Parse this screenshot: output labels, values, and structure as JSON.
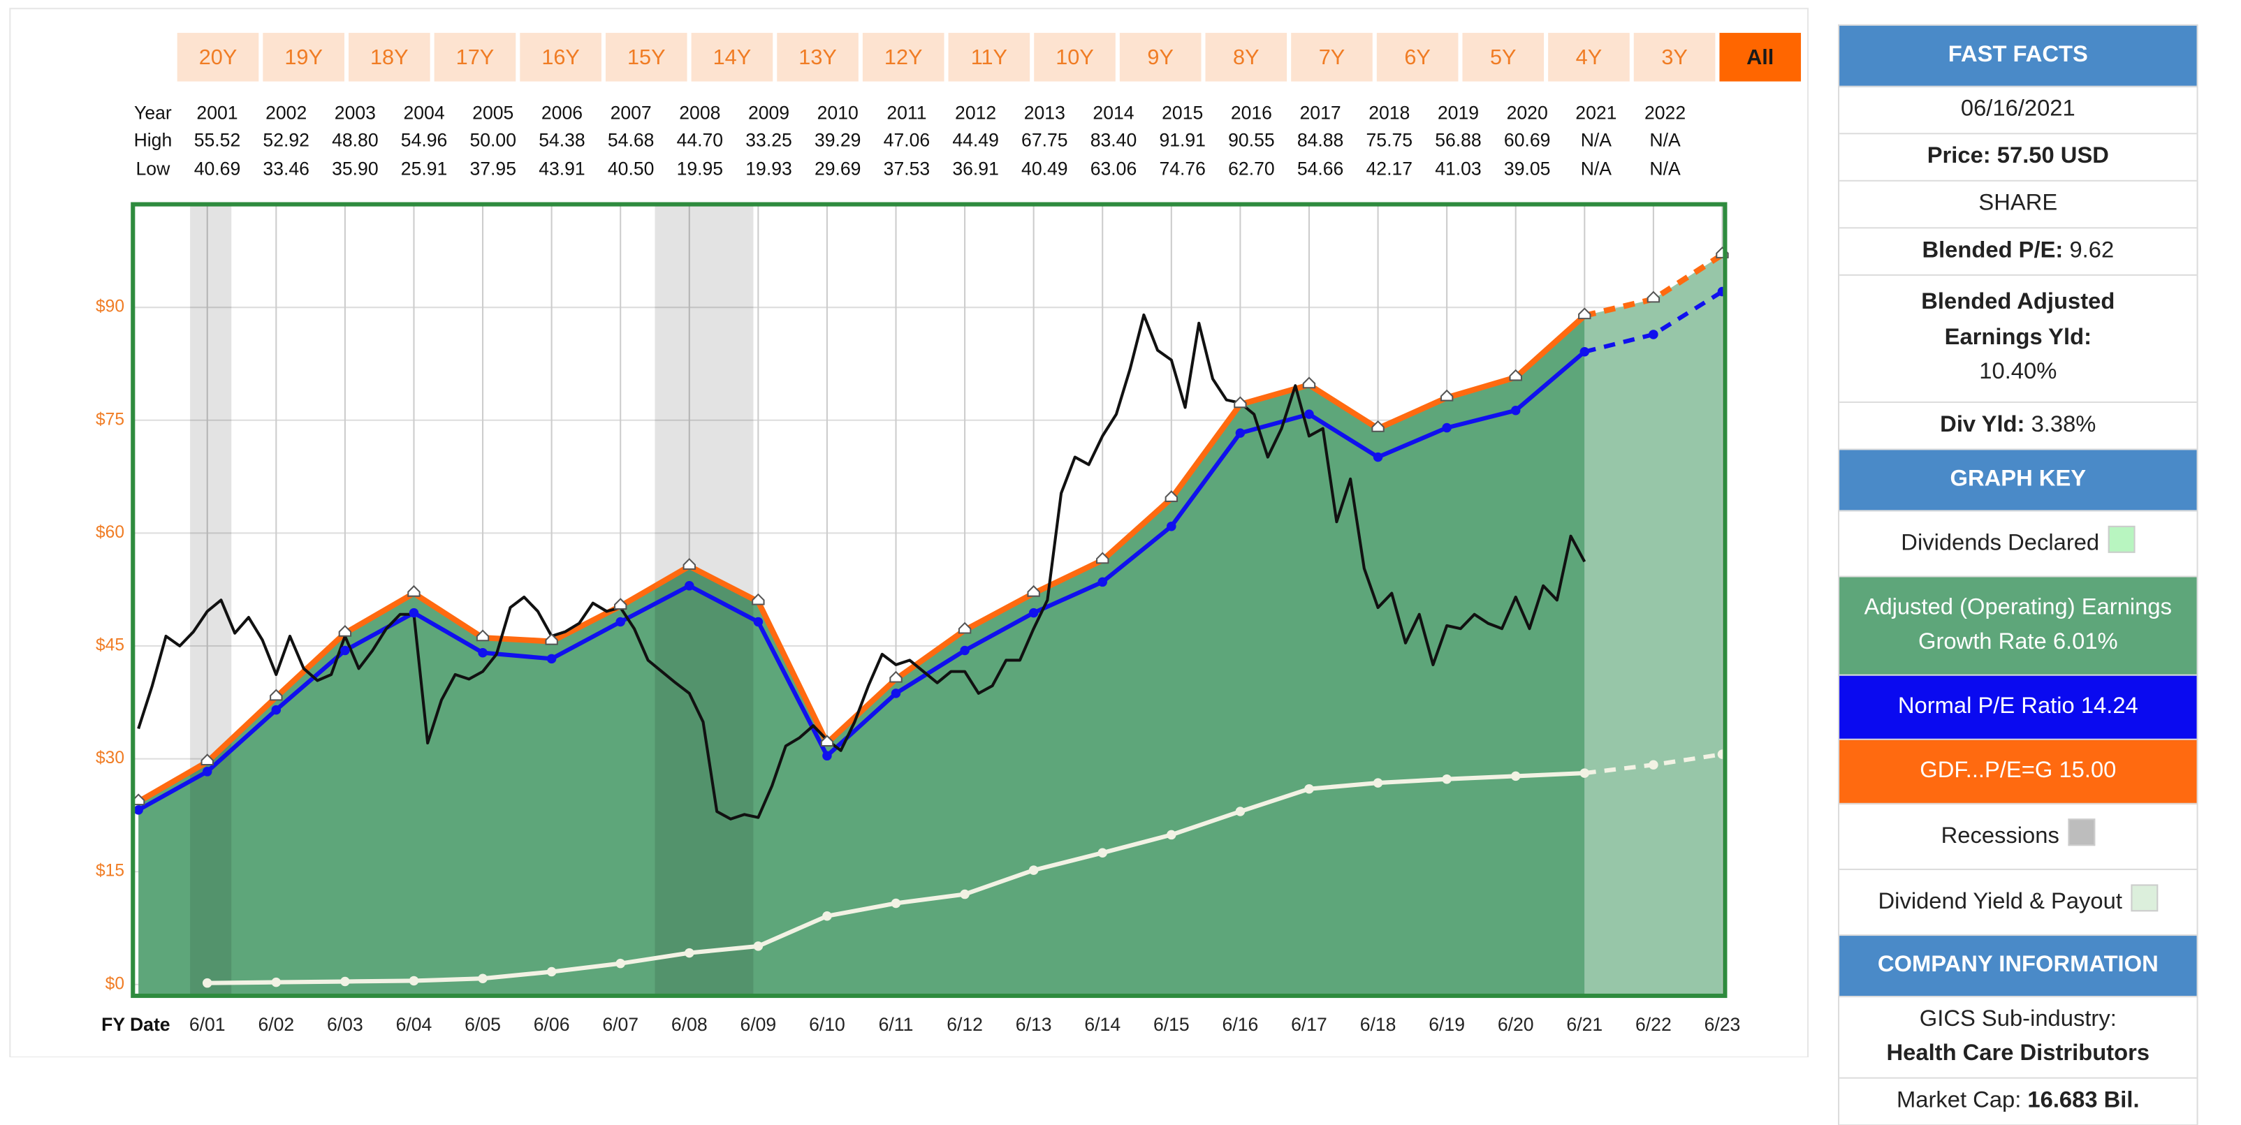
{
  "range_buttons": {
    "items": [
      "20Y",
      "19Y",
      "18Y",
      "17Y",
      "16Y",
      "15Y",
      "14Y",
      "13Y",
      "12Y",
      "11Y",
      "10Y",
      "9Y",
      "8Y",
      "7Y",
      "6Y",
      "5Y",
      "4Y",
      "3Y",
      "All"
    ],
    "selected": 18
  },
  "year_table": {
    "row_labels": [
      "Year",
      "High",
      "Low"
    ],
    "years": [
      "2001",
      "2002",
      "2003",
      "2004",
      "2005",
      "2006",
      "2007",
      "2008",
      "2009",
      "2010",
      "2011",
      "2012",
      "2013",
      "2014",
      "2015",
      "2016",
      "2017",
      "2018",
      "2019",
      "2020",
      "2021",
      "2022"
    ],
    "high": [
      "55.52",
      "52.92",
      "48.80",
      "54.96",
      "50.00",
      "54.38",
      "54.68",
      "44.70",
      "33.25",
      "39.29",
      "47.06",
      "44.49",
      "67.75",
      "83.40",
      "91.91",
      "90.55",
      "84.88",
      "75.75",
      "56.88",
      "60.69",
      "N/A",
      "N/A"
    ],
    "low": [
      "40.69",
      "33.46",
      "35.90",
      "25.91",
      "37.95",
      "43.91",
      "40.50",
      "19.95",
      "19.93",
      "29.69",
      "37.53",
      "36.91",
      "40.49",
      "63.06",
      "74.76",
      "62.70",
      "54.66",
      "42.17",
      "41.03",
      "39.05",
      "N/A",
      "N/A"
    ]
  },
  "chart_data": {
    "type": "line",
    "x_label": "FY Date",
    "xlim": [
      1999.92,
      2023.04
    ],
    "xticks": [
      {
        "value": 2001,
        "label": "6/01"
      },
      {
        "value": 2002,
        "label": "6/02"
      },
      {
        "value": 2003,
        "label": "6/03"
      },
      {
        "value": 2004,
        "label": "6/04"
      },
      {
        "value": 2005,
        "label": "6/05"
      },
      {
        "value": 2006,
        "label": "6/06"
      },
      {
        "value": 2007,
        "label": "6/07"
      },
      {
        "value": 2008,
        "label": "6/08"
      },
      {
        "value": 2009,
        "label": "6/09"
      },
      {
        "value": 2010,
        "label": "6/10"
      },
      {
        "value": 2011,
        "label": "6/11"
      },
      {
        "value": 2012,
        "label": "6/12"
      },
      {
        "value": 2013,
        "label": "6/13"
      },
      {
        "value": 2014,
        "label": "6/14"
      },
      {
        "value": 2015,
        "label": "6/15"
      },
      {
        "value": 2016,
        "label": "6/16"
      },
      {
        "value": 2017,
        "label": "6/17"
      },
      {
        "value": 2018,
        "label": "6/18"
      },
      {
        "value": 2019,
        "label": "6/19"
      },
      {
        "value": 2020,
        "label": "6/20"
      },
      {
        "value": 2021,
        "label": "6/21"
      },
      {
        "value": 2022,
        "label": "6/22"
      },
      {
        "value": 2023,
        "label": "6/23"
      }
    ],
    "ylim": [
      -1.5,
      103.7
    ],
    "yticks": [
      {
        "value": 0,
        "label": "$0"
      },
      {
        "value": 15,
        "label": "$15"
      },
      {
        "value": 30,
        "label": "$30"
      },
      {
        "value": 45,
        "label": "$45"
      },
      {
        "value": 60,
        "label": "$60"
      },
      {
        "value": 75,
        "label": "$75"
      },
      {
        "value": 90,
        "label": "$90"
      }
    ],
    "grid": true,
    "forecast_from": 2021,
    "recessions": [
      {
        "start": 2000.75,
        "end": 2001.35
      },
      {
        "start": 2007.5,
        "end": 2008.93
      }
    ],
    "recession_color": "#000000",
    "series": [
      {
        "color": "#ff6a10",
        "width": 4,
        "marker": "triangle",
        "dash_forecast": true,
        "area_color": "#5ea67a",
        "forecast_area_color": "#97c6a8",
        "x": [
          2000,
          2001,
          2002,
          2003,
          2004,
          2005,
          2006,
          2007,
          2008,
          2009,
          2010,
          2011,
          2012,
          2013,
          2014,
          2015,
          2016,
          2017,
          2018,
          2019,
          2020,
          2021,
          2022,
          2023
        ],
        "values": [
          24.3,
          29.6,
          38.2,
          46.7,
          52.0,
          46.1,
          45.6,
          50.3,
          55.6,
          50.9,
          32.1,
          40.6,
          47.1,
          52.0,
          56.4,
          64.6,
          77.1,
          79.7,
          73.9,
          78.0,
          80.7,
          88.9,
          91.1,
          97.0
        ]
      },
      {
        "color": "#1010ee",
        "width": 3,
        "marker": "circle",
        "dash_forecast": true,
        "x": [
          2000,
          2001,
          2002,
          2003,
          2004,
          2005,
          2006,
          2007,
          2008,
          2009,
          2010,
          2011,
          2012,
          2013,
          2014,
          2015,
          2016,
          2017,
          2018,
          2019,
          2020,
          2021,
          2022,
          2023
        ],
        "values": [
          23.2,
          28.3,
          36.5,
          44.4,
          49.4,
          44.1,
          43.3,
          48.2,
          53.0,
          48.2,
          30.4,
          38.7,
          44.4,
          49.4,
          53.5,
          60.9,
          73.3,
          75.8,
          70.1,
          74.0,
          76.3,
          84.1,
          86.4,
          92.1
        ]
      },
      {
        "color": "#f2f2e4",
        "width": 3,
        "marker": "circle",
        "dash_forecast": true,
        "x": [
          2001,
          2002,
          2003,
          2004,
          2005,
          2006,
          2007,
          2008,
          2009,
          2010,
          2011,
          2012,
          2013,
          2014,
          2015,
          2016,
          2017,
          2018,
          2019,
          2020,
          2021,
          2022,
          2023
        ],
        "values": [
          0.2,
          0.3,
          0.4,
          0.5,
          0.8,
          1.7,
          2.8,
          4.2,
          5.1,
          9.1,
          10.8,
          12.0,
          15.2,
          17.5,
          19.9,
          23.0,
          26.0,
          26.8,
          27.3,
          27.7,
          28.1,
          29.2,
          30.6
        ]
      },
      {
        "color": "#111111",
        "width": 2,
        "x": [
          2000,
          2000.2,
          2000.4,
          2000.6,
          2000.8,
          2001,
          2001.2,
          2001.4,
          2001.6,
          2001.8,
          2002,
          2002.2,
          2002.4,
          2002.6,
          2002.8,
          2003,
          2003.2,
          2003.4,
          2003.6,
          2003.8,
          2004,
          2004.2,
          2004.4,
          2004.6,
          2004.8,
          2005,
          2005.2,
          2005.4,
          2005.6,
          2005.8,
          2006,
          2006.2,
          2006.4,
          2006.6,
          2006.8,
          2007,
          2007.2,
          2007.4,
          2007.6,
          2007.8,
          2008,
          2008.2,
          2008.4,
          2008.6,
          2008.8,
          2009,
          2009.2,
          2009.4,
          2009.6,
          2009.8,
          2010,
          2010.2,
          2010.4,
          2010.6,
          2010.8,
          2011,
          2011.2,
          2011.4,
          2011.6,
          2011.8,
          2012,
          2012.2,
          2012.4,
          2012.6,
          2012.8,
          2013,
          2013.2,
          2013.4,
          2013.6,
          2013.8,
          2014,
          2014.2,
          2014.4,
          2014.6,
          2014.8,
          2015,
          2015.2,
          2015.4,
          2015.6,
          2015.8,
          2016,
          2016.2,
          2016.4,
          2016.6,
          2016.8,
          2017,
          2017.2,
          2017.4,
          2017.6,
          2017.8,
          2018,
          2018.2,
          2018.4,
          2018.6,
          2018.8,
          2019,
          2019.2,
          2019.4,
          2019.6,
          2019.8,
          2020,
          2020.2,
          2020.4,
          2020.6,
          2020.8,
          2021
        ],
        "values": [
          34.0,
          39.7,
          46.3,
          45.0,
          46.9,
          49.6,
          51.1,
          46.7,
          48.8,
          45.8,
          41.2,
          46.3,
          42.0,
          40.4,
          41.2,
          46.3,
          42.0,
          44.4,
          47.3,
          49.2,
          49.2,
          32.1,
          37.8,
          41.2,
          40.6,
          41.6,
          43.9,
          50.1,
          51.5,
          49.6,
          46.3,
          46.9,
          48.0,
          50.7,
          49.6,
          50.1,
          47.3,
          43.1,
          41.6,
          40.1,
          38.7,
          34.9,
          23.0,
          22.0,
          22.6,
          22.2,
          26.4,
          31.7,
          32.8,
          34.4,
          32.5,
          31.1,
          34.9,
          39.7,
          43.9,
          42.5,
          43.1,
          41.6,
          40.1,
          41.6,
          41.6,
          38.7,
          39.7,
          43.1,
          43.1,
          47.3,
          51.1,
          65.3,
          70.1,
          69.1,
          72.9,
          75.8,
          81.8,
          89.0,
          84.3,
          83.0,
          76.7,
          87.9,
          80.5,
          77.7,
          77.3,
          75.8,
          70.1,
          73.9,
          79.6,
          72.9,
          73.9,
          61.5,
          67.2,
          55.3,
          50.1,
          52.0,
          45.4,
          49.2,
          42.5,
          47.7,
          47.3,
          49.2,
          48.0,
          47.3,
          51.5,
          47.3,
          53.0,
          51.1,
          59.6,
          56.2
        ]
      }
    ]
  },
  "fast_facts": {
    "title": "FAST FACTS",
    "date": "06/16/2021",
    "price": {
      "label": "Price:",
      "value": "57.50 USD"
    },
    "share": "SHARE",
    "blended_pe": {
      "label": "Blended P/E:",
      "value": "9.62"
    },
    "blended_yield": {
      "label": "Blended Adjusted Earnings Yld:",
      "value": "10.40%"
    },
    "div_yield": {
      "label": "Div Yld:",
      "value": "3.38%"
    }
  },
  "graph_key": {
    "title": "GRAPH KEY",
    "items": [
      {
        "label": "Dividends Declared",
        "swatch": "#b8f5c0"
      },
      {
        "label": "Adjusted (Operating) Earnings Growth Rate 6.01%",
        "background": "#5ea67a"
      },
      {
        "label": "Normal P/E Ratio 14.24",
        "background": "#0a0af0"
      },
      {
        "label": "GDF...P/E=G 15.00",
        "background": "#ff6a10"
      },
      {
        "label": "Recessions",
        "swatch": "#bdbdbd"
      },
      {
        "label": "Dividend Yield & Payout",
        "swatch": "#dcefdc"
      }
    ]
  },
  "company_information": {
    "title": "COMPANY INFORMATION",
    "industry": {
      "label": "GICS Sub-industry:",
      "value": "Health Care Distributors"
    },
    "market_cap": {
      "label": "Market Cap:",
      "value": "16.683 Bil."
    }
  }
}
